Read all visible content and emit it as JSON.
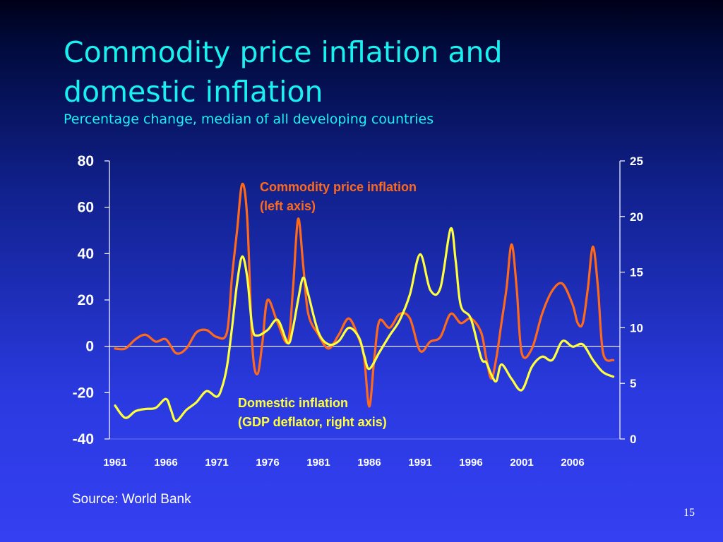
{
  "slide": {
    "title_line1": "Commodity price inflation and",
    "title_line2": "domestic inflation",
    "subtitle": "Percentage change, median of all developing countries",
    "source": "Source: World Bank",
    "page_number": "15"
  },
  "colors": {
    "title": "#19f0f0",
    "commodity": "#ff6a1a",
    "domestic": "#ffff3c",
    "axes": "#ffffff"
  },
  "chart_data": {
    "type": "line",
    "x_tick_labels": [
      "1961",
      "1966",
      "1971",
      "1976",
      "1981",
      "1986",
      "1991",
      "1996",
      "2001",
      "2006"
    ],
    "left_axis": {
      "ticks": [
        "80",
        "60",
        "40",
        "20",
        "0",
        "-20",
        "-40"
      ],
      "range": [
        -40,
        80
      ]
    },
    "right_axis": {
      "ticks": [
        "25",
        "20",
        "15",
        "10",
        "5",
        "0"
      ],
      "range": [
        0,
        25
      ]
    },
    "annotations": {
      "commodity_line1": "Commodity price inflation",
      "commodity_line2": "(left axis)",
      "domestic_line1": "Domestic inflation",
      "domestic_line2": "(GDP deflator, right axis)"
    },
    "series": [
      {
        "key": "commodity",
        "axis": "left",
        "x": [
          1961,
          1962,
          1963,
          1964,
          1965,
          1966,
          1967,
          1968,
          1969,
          1970,
          1971,
          1972,
          1972.5,
          1973,
          1973.5,
          1974,
          1974.5,
          1975,
          1975.5,
          1976,
          1977,
          1978,
          1978.5,
          1979,
          1979.5,
          1980,
          1981,
          1982,
          1983,
          1984,
          1985,
          1985.5,
          1986,
          1986.5,
          1987,
          1988,
          1989,
          1990,
          1991,
          1992,
          1993,
          1994,
          1995,
          1996,
          1997,
          1997.5,
          1998,
          1998.5,
          1999,
          1999.5,
          2000,
          2000.5,
          2001,
          2002,
          2003,
          2004,
          2005,
          2006,
          2006.5,
          2007,
          2007.5,
          2008,
          2008.5,
          2009,
          2010
        ],
        "y": [
          -1,
          -1,
          3,
          5,
          2,
          3,
          -3,
          -1,
          6,
          7,
          4,
          6,
          30,
          50,
          70,
          55,
          0,
          -12,
          2,
          20,
          10,
          2,
          25,
          55,
          35,
          14,
          5,
          -1,
          5,
          12,
          3,
          -5,
          -26,
          -5,
          11,
          8,
          14,
          12,
          -2,
          2,
          4,
          14,
          10,
          12,
          6,
          -5,
          -14,
          -5,
          10,
          25,
          44,
          25,
          -3,
          -1,
          14,
          24,
          27,
          18,
          10,
          10,
          25,
          43,
          25,
          -3,
          -6
        ]
      },
      {
        "key": "domestic",
        "axis": "right",
        "x": [
          1961,
          1962,
          1963,
          1964,
          1965,
          1966,
          1966.5,
          1967,
          1968,
          1969,
          1970,
          1971,
          1971.5,
          1972,
          1972.5,
          1973,
          1973.5,
          1974,
          1974.5,
          1975,
          1976,
          1977,
          1978,
          1978.5,
          1979,
          1979.5,
          1980,
          1981,
          1982,
          1983,
          1984,
          1985,
          1985.5,
          1986,
          1987,
          1988,
          1989,
          1990,
          1991,
          1992,
          1993,
          1994,
          1994.5,
          1995,
          1996,
          1997,
          1997.5,
          1998,
          1998.5,
          1999,
          2000,
          2001,
          2002,
          2003,
          2004,
          2005,
          2006,
          2007,
          2008,
          2009,
          2010
        ],
        "y": [
          3,
          1.9,
          2.5,
          2.7,
          2.8,
          3.6,
          2.6,
          1.6,
          2.6,
          3.3,
          4.3,
          3.8,
          4.6,
          6.5,
          10,
          14,
          16.4,
          14.5,
          10,
          9.3,
          9.8,
          10.7,
          8.6,
          10,
          12.5,
          14.5,
          13,
          9.6,
          8.5,
          8.8,
          10,
          9.1,
          7.5,
          6.3,
          7.8,
          9.3,
          10.7,
          13,
          16.6,
          13.4,
          13.6,
          18.9,
          16,
          12,
          10.8,
          7.3,
          6.9,
          5.8,
          5.2,
          6.7,
          5.4,
          4.4,
          6.5,
          7.4,
          7.1,
          8.8,
          8.3,
          8.5,
          7.1,
          6,
          5.6
        ]
      }
    ]
  }
}
